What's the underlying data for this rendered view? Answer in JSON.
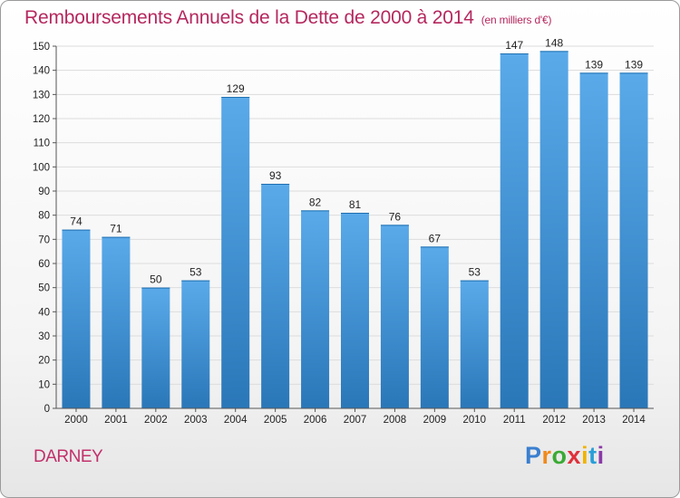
{
  "title": "Remboursements Annuels de la Dette de 2000 à 2014",
  "unit": "(en milliers d'€)",
  "location": "DARNEY",
  "brand": {
    "letters": [
      "P",
      "r",
      "o",
      "x",
      "i",
      "t",
      "i"
    ],
    "colors": [
      "#3a7fd0",
      "#f08a1c",
      "#3aaa35",
      "#e0303a",
      "#f0b400",
      "#2a9fd8",
      "#8a3aa8"
    ]
  },
  "colors": {
    "bar_light": "#5aaaea",
    "bar_dark": "#2a77b8",
    "grid": "#dcdcdc",
    "axis": "#555555"
  },
  "chart_data": {
    "type": "bar",
    "title": "Remboursements Annuels de la Dette de 2000 à 2014",
    "ylabel": "en milliers d'€",
    "xlabel": "",
    "categories": [
      "2000",
      "2001",
      "2002",
      "2003",
      "2004",
      "2005",
      "2006",
      "2007",
      "2008",
      "2009",
      "2010",
      "2011",
      "2012",
      "2013",
      "2014"
    ],
    "values": [
      74,
      71,
      50,
      53,
      129,
      93,
      82,
      81,
      76,
      67,
      53,
      147,
      148,
      139,
      139
    ],
    "ylim": [
      0,
      150
    ],
    "yticks": [
      0,
      10,
      20,
      30,
      40,
      50,
      60,
      70,
      80,
      90,
      100,
      110,
      120,
      130,
      140,
      150
    ],
    "grid": true
  }
}
